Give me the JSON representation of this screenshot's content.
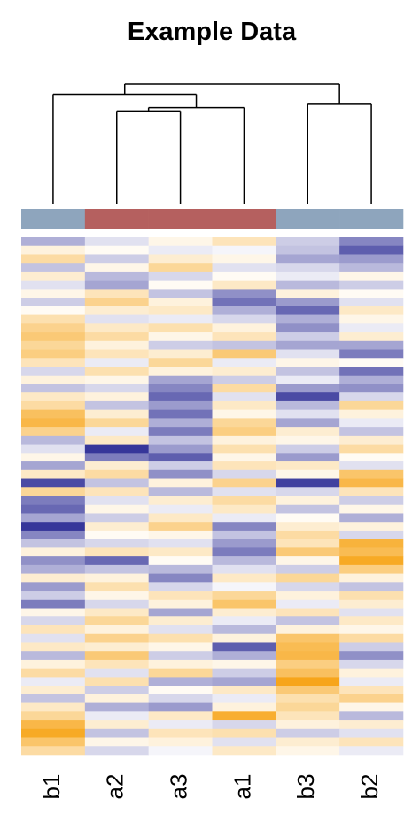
{
  "chart_data": {
    "type": "heatmap",
    "title": "Example Data",
    "columns": [
      "b1",
      "a2",
      "a3",
      "a1",
      "b3",
      "b2"
    ],
    "column_colors": [
      "#8ea5bd",
      "#b5605f",
      "#b5605f",
      "#b5605f",
      "#8ea5bd",
      "#8ea5bd"
    ],
    "color_low": "#36369a",
    "color_mid": "#ffffff",
    "color_high": "#f7a51a",
    "dendrogram": [
      [
        1,
        2,
        0.775
      ],
      [
        6,
        3,
        0.803
      ],
      [
        4,
        5,
        0.838
      ],
      [
        0,
        7,
        0.915
      ],
      [
        9,
        8,
        1.0
      ]
    ],
    "values": [
      [
        -0.8,
        -0.3,
        0.2,
        0.6,
        -0.5,
        -1.2
      ],
      [
        0.3,
        0.1,
        -0.2,
        -0.1,
        -0.6,
        -1.6
      ],
      [
        0.8,
        -0.5,
        0.4,
        0.2,
        -0.9,
        -1.0
      ],
      [
        -0.6,
        0.2,
        0.9,
        -0.3,
        -0.4,
        -0.7
      ],
      [
        0.4,
        -0.7,
        -0.4,
        0.1,
        -0.2,
        0.2
      ],
      [
        -0.3,
        -0.9,
        0.1,
        0.5,
        -0.7,
        -0.5
      ],
      [
        0.2,
        0.6,
        -0.6,
        -1.1,
        0.3,
        0.1
      ],
      [
        -0.5,
        1.0,
        0.3,
        -1.4,
        -1.0,
        -0.3
      ],
      [
        0.1,
        0.4,
        0.5,
        -0.8,
        -1.5,
        0.5
      ],
      [
        0.7,
        -0.3,
        -0.2,
        -0.4,
        -0.8,
        0.2
      ],
      [
        1.0,
        0.5,
        0.7,
        0.3,
        -1.1,
        -0.2
      ],
      [
        1.2,
        0.8,
        0.2,
        0.6,
        -0.5,
        0.4
      ],
      [
        0.9,
        0.3,
        -0.5,
        -0.6,
        -0.9,
        -0.9
      ],
      [
        1.1,
        0.6,
        0.4,
        1.2,
        -0.3,
        -1.3
      ],
      [
        0.6,
        -0.2,
        0.9,
        -0.2,
        0.2,
        0.1
      ],
      [
        -0.4,
        0.7,
        0.3,
        0.4,
        -0.6,
        -1.4
      ],
      [
        0.3,
        0.2,
        -0.9,
        -0.5,
        -0.2,
        -0.8
      ],
      [
        -0.6,
        -0.4,
        -1.2,
        0.8,
        -1.0,
        -1.1
      ],
      [
        0.5,
        0.3,
        -1.5,
        -0.3,
        -1.8,
        -0.4
      ],
      [
        0.8,
        -0.6,
        -1.0,
        0.5,
        -0.7,
        0.9
      ],
      [
        1.4,
        0.4,
        -1.4,
        0.2,
        -0.3,
        0.3
      ],
      [
        1.6,
        0.9,
        -0.8,
        0.9,
        -0.9,
        -0.2
      ],
      [
        1.0,
        -0.2,
        -1.3,
        1.1,
        0.4,
        -0.6
      ],
      [
        -0.7,
        0.5,
        -0.6,
        0.3,
        0.2,
        0.4
      ],
      [
        -0.3,
        -2.0,
        -1.0,
        0.7,
        -0.5,
        0.8
      ],
      [
        0.2,
        -1.3,
        -1.6,
        0.2,
        -1.0,
        0.1
      ],
      [
        -0.9,
        0.4,
        -0.5,
        0.6,
        0.5,
        -0.3
      ],
      [
        0.5,
        0.8,
        -1.1,
        -0.4,
        0.2,
        1.3
      ],
      [
        -1.8,
        -0.6,
        0.3,
        1.0,
        -1.9,
        1.6
      ],
      [
        0.9,
        0.6,
        -0.7,
        -0.3,
        -0.4,
        0.6
      ],
      [
        -1.3,
        -0.3,
        0.4,
        0.8,
        0.3,
        -0.5
      ],
      [
        -1.5,
        0.2,
        -0.2,
        0.5,
        -0.6,
        0.2
      ],
      [
        -0.9,
        -0.5,
        0.5,
        -0.2,
        0.1,
        -0.8
      ],
      [
        -2.0,
        0.4,
        1.0,
        -1.2,
        0.4,
        0.3
      ],
      [
        -1.2,
        0.1,
        0.2,
        -0.6,
        0.8,
        -0.4
      ],
      [
        -0.6,
        -0.4,
        -0.3,
        -1.0,
        0.6,
        1.7
      ],
      [
        0.3,
        0.6,
        0.5,
        -1.3,
        1.2,
        1.5
      ],
      [
        -1.1,
        -1.5,
        0.1,
        -0.7,
        0.2,
        1.9
      ],
      [
        -0.8,
        -0.6,
        -0.7,
        -0.3,
        -0.5,
        1.1
      ],
      [
        0.4,
        0.3,
        -1.2,
        0.5,
        0.9,
        0.3
      ],
      [
        -1.0,
        0.7,
        -0.4,
        -0.1,
        -0.4,
        -0.6
      ],
      [
        -0.5,
        0.2,
        0.6,
        0.9,
        0.3,
        0.7
      ],
      [
        -1.3,
        -0.4,
        0.3,
        1.3,
        -0.2,
        0.4
      ],
      [
        0.2,
        0.5,
        -0.9,
        0.4,
        0.6,
        -0.3
      ],
      [
        -0.4,
        0.9,
        0.4,
        -0.2,
        -0.6,
        0.5
      ],
      [
        0.6,
        0.3,
        -0.3,
        -0.7,
        0.3,
        0.2
      ],
      [
        -0.3,
        1.0,
        0.7,
        0.3,
        1.3,
        0.8
      ],
      [
        0.5,
        0.4,
        0.2,
        -1.6,
        1.5,
        -0.5
      ],
      [
        -0.7,
        1.2,
        -0.5,
        -0.8,
        1.6,
        -1.1
      ],
      [
        0.3,
        0.6,
        0.3,
        0.2,
        1.1,
        -0.4
      ],
      [
        0.8,
        -0.3,
        0.9,
        -0.5,
        1.4,
        0.3
      ],
      [
        -0.2,
        0.7,
        -0.8,
        -0.9,
        2.0,
        -0.2
      ],
      [
        0.4,
        -0.5,
        0.1,
        0.5,
        1.2,
        0.6
      ],
      [
        -0.6,
        0.3,
        -0.4,
        -0.2,
        0.7,
        1.0
      ],
      [
        0.5,
        -0.8,
        -1.0,
        0.3,
        0.9,
        0.2
      ],
      [
        0.9,
        -0.2,
        0.5,
        1.8,
        0.6,
        -0.7
      ],
      [
        1.6,
        0.4,
        -0.2,
        -0.4,
        0.3,
        0.4
      ],
      [
        1.9,
        -0.6,
        0.6,
        0.7,
        -0.5,
        -0.3
      ],
      [
        1.3,
        0.2,
        0.3,
        -0.3,
        0.4,
        0.6
      ],
      [
        0.8,
        -0.4,
        -0.1,
        0.5,
        0.2,
        -0.2
      ]
    ]
  }
}
